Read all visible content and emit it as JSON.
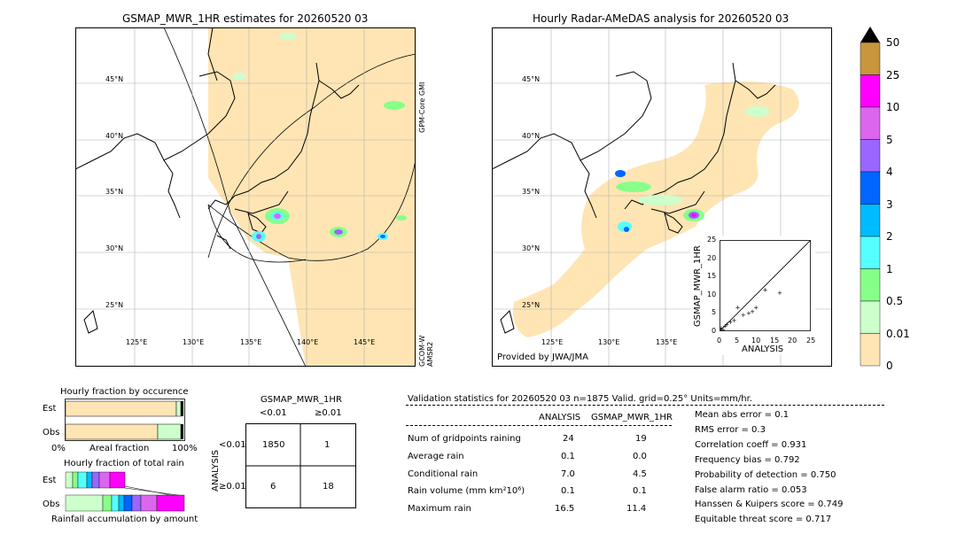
{
  "left_map": {
    "title": "GSMAP_MWR_1HR estimates for 20260520 03",
    "lat_labels": [
      "45°N",
      "40°N",
      "35°N",
      "30°N",
      "25°N"
    ],
    "lon_labels": [
      "125°E",
      "130°E",
      "135°E",
      "140°E",
      "145°E"
    ],
    "sat_label_top": "GPM-Core GMI",
    "sat_label_bottom": "GCOM-W AMSR2"
  },
  "right_map": {
    "title": "Hourly Radar-AMeDAS analysis for 20260520 03",
    "lat_labels": [
      "45°N",
      "40°N",
      "35°N",
      "30°N",
      "25°N"
    ],
    "lon_labels": [
      "125°E",
      "130°E",
      "135°E"
    ],
    "credit": "Provided by JWA/JMA"
  },
  "scatter": {
    "xlabel": "ANALYSIS",
    "ylabel": "GSMAP_MWR_1HR",
    "ticks": [
      "0",
      "5",
      "10",
      "15",
      "20",
      "25"
    ]
  },
  "colorbar": {
    "labels": [
      "50",
      "25",
      "10",
      "5",
      "4",
      "3",
      "2",
      "1",
      "0.5",
      "0.01",
      "0"
    ],
    "colors": [
      "#c8963c",
      "#ff00ff",
      "#dd66ee",
      "#9966ff",
      "#0066ff",
      "#00bbff",
      "#55ffff",
      "#88ff88",
      "#ccffcc",
      "#ffe5b4"
    ]
  },
  "fraction_occurrence": {
    "title": "Hourly fraction by occurence",
    "rows": [
      "Est",
      "Obs"
    ],
    "xlabel_left": "0%",
    "xlabel_mid": "Areal fraction",
    "xlabel_right": "100%"
  },
  "fraction_total": {
    "title": "Hourly fraction of total rain",
    "rows": [
      "Est",
      "Obs"
    ],
    "xlabel": "Rainfall accumulation by amount"
  },
  "contingency": {
    "title": "GSMAP_MWR_1HR",
    "col_headers": [
      "<0.01",
      "≥0.01"
    ],
    "row_axis_label": "ANALYSIS",
    "row_headers": [
      "<0.01",
      "≥0.01"
    ],
    "cells": [
      [
        "1850",
        "1"
      ],
      [
        "6",
        "18"
      ]
    ]
  },
  "validation": {
    "header": "Validation statistics for 20260520 03  n=1875 Valid. grid=0.25° Units=mm/hr.",
    "col_analysis": "ANALYSIS",
    "col_gsmap": "GSMAP_MWR_1HR",
    "rows": [
      {
        "label": "Num of gridpoints raining",
        "analysis": "24",
        "gsmap": "19"
      },
      {
        "label": "Average rain",
        "analysis": "0.1",
        "gsmap": "0.0"
      },
      {
        "label": "Conditional rain",
        "analysis": "7.0",
        "gsmap": "4.5"
      },
      {
        "label": "Rain volume (mm km²10⁶)",
        "analysis": "0.1",
        "gsmap": "0.1"
      },
      {
        "label": "Maximum rain",
        "analysis": "16.5",
        "gsmap": "11.4"
      }
    ],
    "scores": [
      "Mean abs error =    0.1",
      "RMS error =    0.3",
      "Correlation coeff =  0.931",
      "Frequency bias =  0.792",
      "Probability of detection =  0.750",
      "False alarm ratio =  0.053",
      "Hanssen & Kuipers score =  0.749",
      "Equitable threat score =  0.717"
    ]
  },
  "chart_data": [
    {
      "type": "scatter",
      "title": "",
      "xlabel": "ANALYSIS",
      "ylabel": "GSMAP_MWR_1HR",
      "xlim": [
        0,
        25
      ],
      "ylim": [
        0,
        25
      ],
      "x": [
        0.3,
        0.5,
        1.0,
        1.5,
        2.0,
        3.0,
        4.0,
        5.0,
        6.5,
        8.0,
        9.0,
        10.0,
        12.5,
        16.5
      ],
      "y": [
        0.2,
        1.0,
        0.5,
        1.5,
        2.0,
        2.5,
        3.0,
        6.5,
        4.5,
        5.0,
        5.5,
        6.5,
        11.4,
        10.5
      ]
    },
    {
      "type": "bar",
      "title": "Hourly fraction by occurence",
      "categories": [
        "Est",
        "Obs"
      ],
      "series": [
        {
          "values": [
            0.975,
            0.975
          ]
        }
      ]
    }
  ]
}
